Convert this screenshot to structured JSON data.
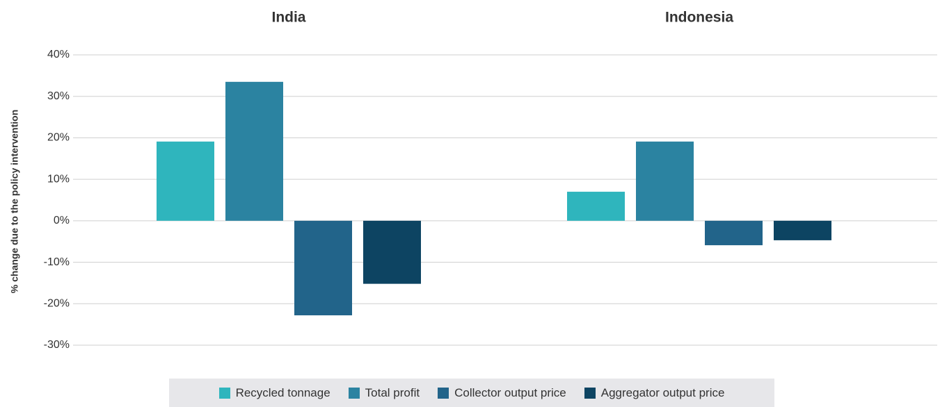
{
  "chart_data": {
    "type": "bar",
    "y_label": "% change due to the policy intervention",
    "categories": [
      "India",
      "Indonesia"
    ],
    "series": [
      {
        "name": "Recycled tonnage",
        "color": "#2fb5bd",
        "values": [
          19.1,
          7.0
        ]
      },
      {
        "name": "Total profit",
        "color": "#2b83a1",
        "values": [
          33.5,
          19.1
        ]
      },
      {
        "name": "Collector output price",
        "color": "#22648a",
        "values": [
          -22.8,
          -5.9
        ]
      },
      {
        "name": "Aggregator output price",
        "color": "#0d4462",
        "values": [
          -15.2,
          -4.7
        ]
      }
    ],
    "ylim": [
      -30,
      40
    ],
    "yticks": [
      {
        "value": -30,
        "label": "-30%"
      },
      {
        "value": -20,
        "label": "-20%"
      },
      {
        "value": -10,
        "label": "-10%"
      },
      {
        "value": 0,
        "label": "0%"
      },
      {
        "value": 10,
        "label": "10%"
      },
      {
        "value": 20,
        "label": "20%"
      },
      {
        "value": 30,
        "label": "30%"
      },
      {
        "value": 40,
        "label": "40%"
      }
    ],
    "grid": true,
    "legend": "bottom"
  }
}
